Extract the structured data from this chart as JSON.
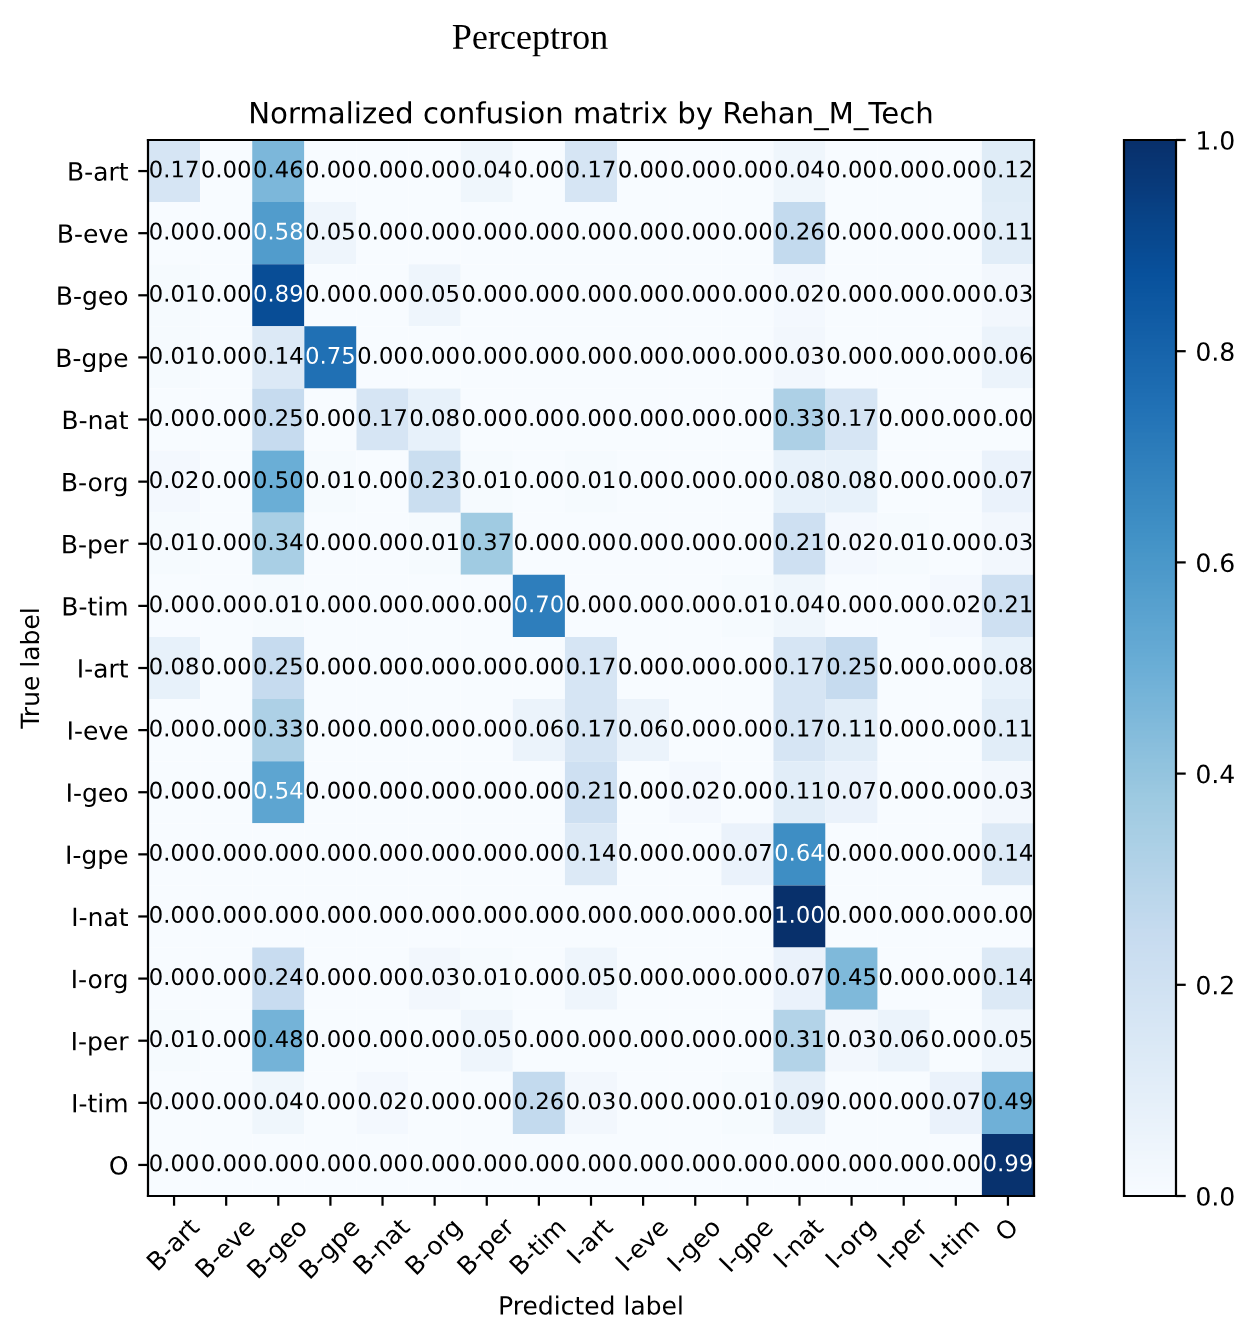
{
  "chart_data": {
    "type": "heatmap",
    "title": "Perceptron",
    "subtitle": "Normalized confusion matrix by Rehan_M_Tech",
    "xlabel": "Predicted label",
    "ylabel": "True label",
    "categories": [
      "B-art",
      "B-eve",
      "B-geo",
      "B-gpe",
      "B-nat",
      "B-org",
      "B-per",
      "B-tim",
      "I-art",
      "I-eve",
      "I-geo",
      "I-gpe",
      "I-nat",
      "I-org",
      "I-per",
      "I-tim",
      "O"
    ],
    "y_categories": [
      "B-art",
      "B-eve",
      "B-geo",
      "B-gpe",
      "B-nat",
      "B-org",
      "B-per",
      "B-tim",
      "I-art",
      "I-eve",
      "I-geo",
      "I-gpe",
      "I-nat",
      "I-org",
      "I-per",
      "I-tim",
      "O"
    ],
    "cells": [
      [
        0.17,
        0,
        0.46,
        0,
        0,
        0,
        0.04,
        0,
        0.17,
        0,
        0,
        0,
        0.04,
        0,
        0,
        0,
        0.12
      ],
      [
        0,
        0,
        0.58,
        0.05,
        0,
        0,
        0,
        0,
        0,
        0,
        0,
        0,
        0.26,
        0,
        0,
        0,
        0.11
      ],
      [
        0.01,
        0,
        0.89,
        0,
        0,
        0.05,
        0,
        0,
        0,
        0,
        0,
        0,
        0.02,
        0,
        0,
        0,
        0.03
      ],
      [
        0.01,
        0,
        0.14,
        0.75,
        0,
        0,
        0,
        0,
        0,
        0,
        0,
        0,
        0.03,
        0,
        0,
        0,
        0.06
      ],
      [
        0,
        0,
        0.25,
        0,
        0.17,
        0.08,
        0,
        0,
        0,
        0,
        0,
        0,
        0.33,
        0.17,
        0,
        0,
        0
      ],
      [
        0.02,
        0,
        0.5,
        0.01,
        0,
        0.23,
        0.01,
        0,
        0.01,
        0,
        0,
        0,
        0.08,
        0.08,
        0,
        0,
        0.07
      ],
      [
        0.01,
        0,
        0.34,
        0,
        0,
        0.01,
        0.37,
        0,
        0,
        0,
        0,
        0,
        0.21,
        0.02,
        0.01,
        0,
        0.03
      ],
      [
        0,
        0,
        0.01,
        0,
        0,
        0,
        0,
        0.7,
        0,
        0,
        0,
        0.01,
        0.04,
        0,
        0,
        0.02,
        0.21
      ],
      [
        0.08,
        0,
        0.25,
        0,
        0,
        0,
        0,
        0,
        0.17,
        0,
        0,
        0,
        0.17,
        0.25,
        0,
        0,
        0.08
      ],
      [
        0,
        0,
        0.33,
        0,
        0,
        0,
        0,
        0.06,
        0.17,
        0.06,
        0,
        0,
        0.17,
        0.11,
        0,
        0,
        0.11
      ],
      [
        0,
        0,
        0.54,
        0,
        0,
        0,
        0,
        0,
        0.21,
        0,
        0.02,
        0,
        0.11,
        0.07,
        0,
        0,
        0.03
      ],
      [
        0,
        0,
        0,
        0,
        0,
        0,
        0,
        0,
        0.14,
        0,
        0,
        0.07,
        0.64,
        0,
        0,
        0,
        0.14
      ],
      [
        0,
        0,
        0,
        0,
        0,
        0,
        0,
        0,
        0,
        0,
        0,
        0,
        1.0,
        0,
        0,
        0,
        0
      ],
      [
        0,
        0,
        0.24,
        0,
        0,
        0.03,
        0.01,
        0,
        0.05,
        0,
        0,
        0,
        0.07,
        0.45,
        0,
        0,
        0.14
      ],
      [
        0.01,
        0,
        0.48,
        0,
        0,
        0,
        0.05,
        0,
        0,
        0,
        0,
        0,
        0.31,
        0.03,
        0.06,
        0,
        0.05
      ],
      [
        0,
        0,
        0.04,
        0,
        0.02,
        0,
        0,
        0.26,
        0.03,
        0,
        0,
        0.01,
        0.09,
        0,
        0,
        0.07,
        0.49
      ],
      [
        0,
        0,
        0,
        0,
        0,
        0,
        0,
        0,
        0,
        0,
        0,
        0,
        0,
        0,
        0,
        0,
        0.99
      ]
    ],
    "cell_labels": [
      [
        "0.17",
        "0.00",
        "0.46",
        "0.00",
        "0.00",
        "0.00",
        "0.04",
        "0.00",
        "0.17",
        "0.00",
        "0.00",
        "0.00",
        "0.04",
        "0.00",
        "0.00",
        "0.00",
        "0.12"
      ],
      [
        "0.00",
        "0.00",
        "0.58",
        "0.05",
        "0.00",
        "0.00",
        "0.00",
        "0.00",
        "0.00",
        "0.00",
        "0.00",
        "0.00",
        "0.26",
        "0.00",
        "0.00",
        "0.00",
        "0.11"
      ],
      [
        "0.01",
        "0.00",
        "0.89",
        "0.00",
        "0.00",
        "0.05",
        "0.00",
        "0.00",
        "0.00",
        "0.00",
        "0.00",
        "0.00",
        "0.02",
        "0.00",
        "0.00",
        "0.00",
        "0.03"
      ],
      [
        "0.01",
        "0.00",
        "0.14",
        "0.75",
        "0.00",
        "0.00",
        "0.00",
        "0.00",
        "0.00",
        "0.00",
        "0.00",
        "0.00",
        "0.03",
        "0.00",
        "0.00",
        "0.00",
        "0.06"
      ],
      [
        "0.00",
        "0.00",
        "0.25",
        "0.00",
        "0.17",
        "0.08",
        "0.00",
        "0.00",
        "0.00",
        "0.00",
        "0.00",
        "0.00",
        "0.33",
        "0.17",
        "0.00",
        "0.00",
        "0.00"
      ],
      [
        "0.02",
        "0.00",
        "0.50",
        "0.01",
        "0.00",
        "0.23",
        "0.01",
        "0.00",
        "0.01",
        "0.00",
        "0.00",
        "0.00",
        "0.08",
        "0.08",
        "0.00",
        "0.00",
        "0.07"
      ],
      [
        "0.01",
        "0.00",
        "0.34",
        "0.00",
        "0.00",
        "0.01",
        "0.37",
        "0.00",
        "0.00",
        "0.00",
        "0.00",
        "0.00",
        "0.21",
        "0.02",
        "0.01",
        "0.00",
        "0.03"
      ],
      [
        "0.00",
        "0.00",
        "0.01",
        "0.00",
        "0.00",
        "0.00",
        "0.00",
        "0.70",
        "0.00",
        "0.00",
        "0.00",
        "0.01",
        "0.04",
        "0.00",
        "0.00",
        "0.02",
        "0.21"
      ],
      [
        "0.08",
        "0.00",
        "0.25",
        "0.00",
        "0.00",
        "0.00",
        "0.00",
        "0.00",
        "0.17",
        "0.00",
        "0.00",
        "0.00",
        "0.17",
        "0.25",
        "0.00",
        "0.00",
        "0.08"
      ],
      [
        "0.00",
        "0.00",
        "0.33",
        "0.00",
        "0.00",
        "0.00",
        "0.00",
        "0.06",
        "0.17",
        "0.06",
        "0.00",
        "0.00",
        "0.17",
        "0.11",
        "0.00",
        "0.00",
        "0.11"
      ],
      [
        "0.00",
        "0.00",
        "0.54",
        "0.00",
        "0.00",
        "0.00",
        "0.00",
        "0.00",
        "0.21",
        "0.00",
        "0.02",
        "0.00",
        "0.11",
        "0.07",
        "0.00",
        "0.00",
        "0.03"
      ],
      [
        "0.00",
        "0.00",
        "0.00",
        "0.00",
        "0.00",
        "0.00",
        "0.00",
        "0.00",
        "0.14",
        "0.00",
        "0.00",
        "0.07",
        "0.64",
        "0.00",
        "0.00",
        "0.00",
        "0.14"
      ],
      [
        "0.00",
        "0.00",
        "0.00",
        "0.00",
        "0.00",
        "0.00",
        "0.00",
        "0.00",
        "0.00",
        "0.00",
        "0.00",
        "0.00",
        "1.00",
        "0.00",
        "0.00",
        "0.00",
        "0.00"
      ],
      [
        "0.00",
        "0.00",
        "0.24",
        "0.00",
        "0.00",
        "0.03",
        "0.01",
        "0.00",
        "0.05",
        "0.00",
        "0.00",
        "0.00",
        "0.07",
        "0.45",
        "0.00",
        "0.00",
        "0.14"
      ],
      [
        "0.01",
        "0.00",
        "0.48",
        "0.00",
        "0.00",
        "0.00",
        "0.05",
        "0.00",
        "0.00",
        "0.00",
        "0.00",
        "0.00",
        "0.31",
        "0.03",
        "0.06",
        "0.00",
        "0.05"
      ],
      [
        "0.00",
        "0.00",
        "0.04",
        "0.00",
        "0.02",
        "0.00",
        "0.00",
        "0.26",
        "0.03",
        "0.00",
        "0.00",
        "0.01",
        "0.09",
        "0.00",
        "0.00",
        "0.07",
        "0.49"
      ],
      [
        "0.00",
        "0.00",
        "0.00",
        "0.00",
        "0.00",
        "0.00",
        "0.00",
        "0.00",
        "0.00",
        "0.00",
        "0.00",
        "0.00",
        "0.00",
        "0.00",
        "0.00",
        "0.00",
        "0.99"
      ]
    ],
    "clim": [
      0,
      1
    ],
    "cticks": [
      {
        "value": 0,
        "label": "0.0"
      },
      {
        "value": 0.2,
        "label": "0.2"
      },
      {
        "value": 0.4,
        "label": "0.4"
      },
      {
        "value": 0.6,
        "label": "0.6"
      },
      {
        "value": 0.8,
        "label": "0.8"
      },
      {
        "value": 1,
        "label": "1.0"
      }
    ]
  }
}
